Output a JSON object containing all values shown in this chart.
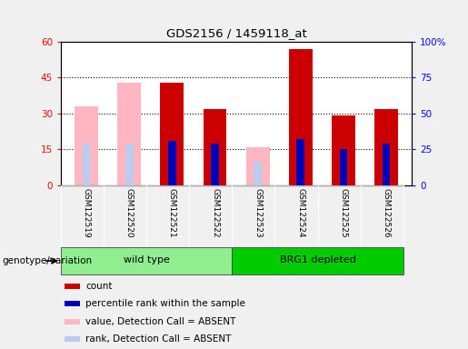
{
  "title": "GDS2156 / 1459118_at",
  "samples": [
    "GSM122519",
    "GSM122520",
    "GSM122521",
    "GSM122522",
    "GSM122523",
    "GSM122524",
    "GSM122525",
    "GSM122526"
  ],
  "count_values": [
    null,
    null,
    43,
    32,
    null,
    57,
    29,
    32
  ],
  "rank_values": [
    null,
    null,
    31,
    29,
    null,
    32,
    25,
    29
  ],
  "absent_count_values": [
    33,
    43,
    null,
    null,
    16,
    null,
    null,
    null
  ],
  "absent_rank_values": [
    29,
    29,
    null,
    null,
    16,
    null,
    null,
    null
  ],
  "groups": [
    {
      "label": "wild type",
      "indices": [
        0,
        1,
        2,
        3
      ],
      "color": "#90EE90"
    },
    {
      "label": "BRG1 depleted",
      "indices": [
        4,
        5,
        6,
        7
      ],
      "color": "#00CC00"
    }
  ],
  "ylim_left": [
    0,
    60
  ],
  "ylim_right": [
    0,
    100
  ],
  "yticks_left": [
    0,
    15,
    30,
    45,
    60
  ],
  "yticks_right": [
    0,
    25,
    50,
    75,
    100
  ],
  "yticklabels_right": [
    "0",
    "25",
    "50",
    "75",
    "100%"
  ],
  "bar_color_red": "#CC0000",
  "bar_color_blue": "#0000BB",
  "bar_color_pink": "#FFB6C1",
  "bar_color_lightblue": "#BBCCEE",
  "group_label": "genotype/variation",
  "background_color": "#F0F0F0",
  "plot_bg": "#FFFFFF",
  "tick_label_bg": "#C8C8C8",
  "legend_items": [
    {
      "color": "#CC0000",
      "label": "count"
    },
    {
      "color": "#0000BB",
      "label": "percentile rank within the sample"
    },
    {
      "color": "#FFB6C1",
      "label": "value, Detection Call = ABSENT"
    },
    {
      "color": "#BBCCEE",
      "label": "rank, Detection Call = ABSENT"
    }
  ]
}
